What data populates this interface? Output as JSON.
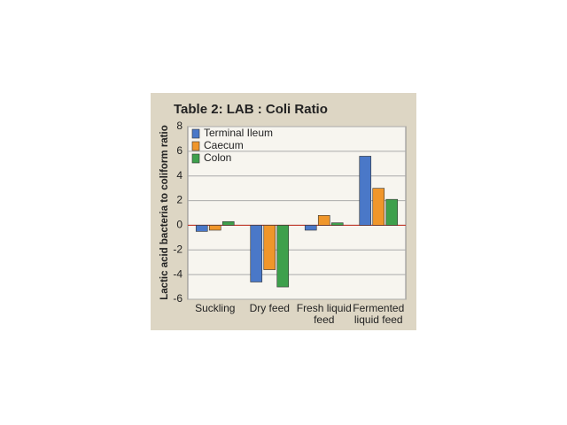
{
  "chart_data": {
    "type": "bar",
    "title": "Table 2: LAB : Coli Ratio",
    "y_label": "Lactic acid bacteria to coliform ratio",
    "categories": [
      "Suckling",
      "Dry feed",
      "Fresh liquid feed",
      "Fermented liquid feed"
    ],
    "series": [
      {
        "name": "Terminal Ileum",
        "color": "#4a78c8",
        "values": [
          -0.5,
          -4.6,
          -0.4,
          5.6
        ]
      },
      {
        "name": "Caecum",
        "color": "#f0962a",
        "values": [
          -0.4,
          -3.6,
          0.8,
          3.0
        ]
      },
      {
        "name": "Colon",
        "color": "#3ea04c",
        "values": [
          0.3,
          -5.0,
          0.2,
          2.1
        ]
      }
    ],
    "ylim": [
      -6,
      8
    ],
    "yticks": [
      -6,
      -4,
      -2,
      0,
      2,
      4,
      6,
      8
    ],
    "grid": true
  }
}
